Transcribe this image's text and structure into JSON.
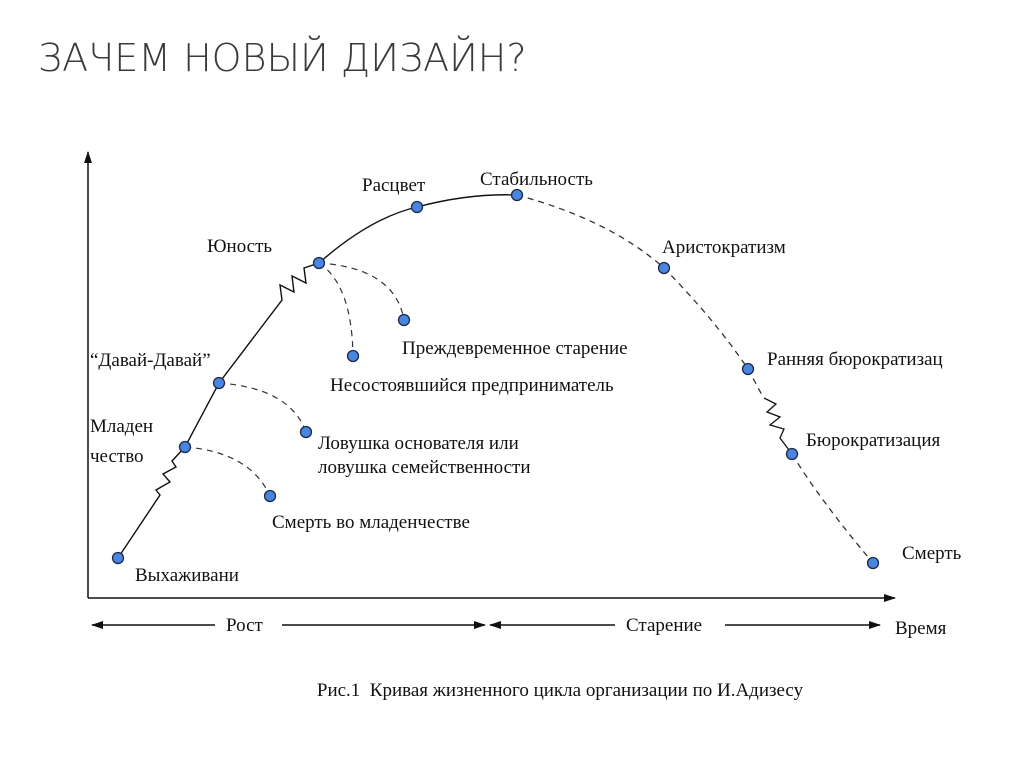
{
  "slide": {
    "title": "ЗАЧЕМ НОВЫЙ ДИЗАЙН?"
  },
  "diagram": {
    "stages": {
      "vykhazhivanie": "Выхаживани",
      "infancy_1": "Младен",
      "infancy_2": "чество",
      "go_go": "“Давай-Давай”",
      "adolescence": "Юность",
      "prime": "Расцвет",
      "stability": "Стабильность",
      "aristocracy": "Аристократизм",
      "early_bureaucracy": "Ранняя бюрократизац",
      "bureaucracy": "Бюрократизация",
      "death": "Смерть"
    },
    "traps": {
      "infant_mortality": "Смерть во младенчестве",
      "founder_trap_1": "Ловушка основателя или",
      "founder_trap_2": "ловушка семейственности",
      "failed_entrepreneur": "Несостоявшийся предприниматель",
      "premature_aging": "Преждевременное старение"
    },
    "axis": {
      "growth": "Рост",
      "aging": "Старение",
      "time": "Время"
    },
    "caption": "Рис.1  Кривая жизненного цикла организации по И.Адизесу",
    "colors": {
      "point": "#4a86e0",
      "line": "#111111"
    }
  }
}
